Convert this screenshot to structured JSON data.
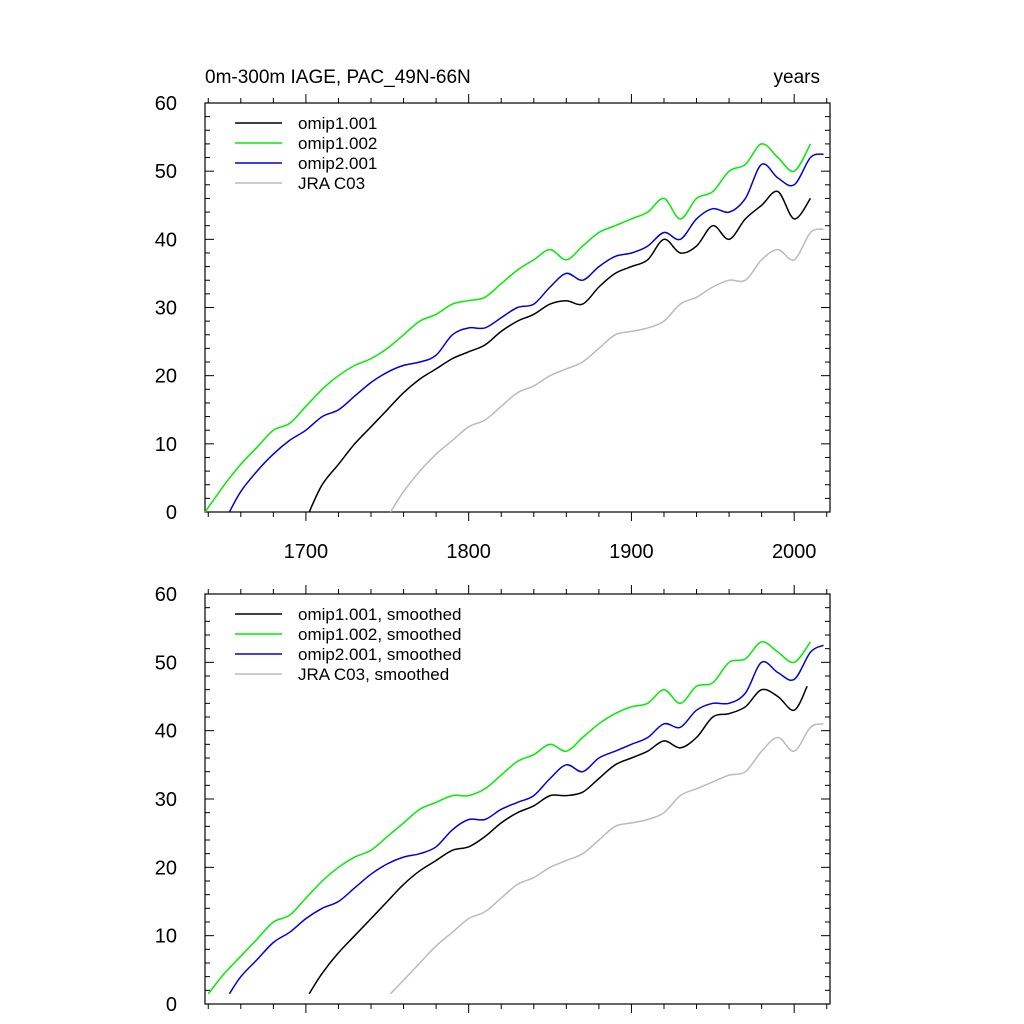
{
  "chart_data": [
    {
      "type": "line",
      "title_left": "0m-300m IAGE, PAC_49N-66N",
      "title_right": "years",
      "xlim": [
        1638,
        2022
      ],
      "ylim": [
        0,
        60
      ],
      "x_ticks": [
        1700,
        1800,
        1900,
        2000
      ],
      "x_tick_labels": [
        "1700",
        "1800",
        "1900",
        "2000"
      ],
      "y_ticks": [
        0,
        10,
        20,
        30,
        40,
        50,
        60
      ],
      "y_tick_labels": [
        "0",
        "10",
        "20",
        "30",
        "40",
        "50",
        "60"
      ],
      "legend": "top-left",
      "smoothed": false,
      "series": [
        {
          "name": "omip1.001",
          "color": "#000000",
          "x": [
            1702,
            1710,
            1720,
            1730,
            1740,
            1750,
            1760,
            1770,
            1780,
            1790,
            1800,
            1810,
            1820,
            1830,
            1840,
            1850,
            1860,
            1870,
            1880,
            1890,
            1900,
            1910,
            1920,
            1930,
            1940,
            1950,
            1960,
            1970,
            1980,
            1990,
            2000,
            2010
          ],
          "y": [
            0,
            4,
            7,
            10,
            12.5,
            15,
            17.5,
            19.5,
            21,
            22.5,
            23.5,
            24.5,
            26.5,
            28,
            29,
            30.5,
            31,
            30.5,
            33,
            35,
            36,
            37,
            40,
            38,
            39,
            42,
            40,
            43,
            45,
            47,
            43,
            46
          ]
        },
        {
          "name": "omip1.002",
          "color": "#00ee00",
          "x": [
            1638,
            1650,
            1660,
            1670,
            1680,
            1690,
            1700,
            1710,
            1720,
            1730,
            1740,
            1750,
            1760,
            1770,
            1780,
            1790,
            1800,
            1810,
            1820,
            1830,
            1840,
            1850,
            1860,
            1870,
            1880,
            1890,
            1900,
            1910,
            1920,
            1930,
            1940,
            1950,
            1960,
            1970,
            1980,
            1990,
            2000,
            2010
          ],
          "y": [
            0,
            4,
            7,
            9.5,
            12,
            13,
            15.5,
            18,
            20,
            21.5,
            22.5,
            24,
            26,
            28,
            29,
            30.5,
            31,
            31.5,
            33.5,
            35.5,
            37,
            38.5,
            37,
            39,
            41,
            42,
            43,
            44,
            46,
            43,
            46,
            47,
            50,
            51,
            54,
            52,
            50,
            54
          ]
        },
        {
          "name": "omip2.001",
          "color": "#0000dd",
          "x": [
            1653,
            1660,
            1670,
            1680,
            1690,
            1700,
            1710,
            1720,
            1730,
            1740,
            1750,
            1760,
            1770,
            1780,
            1790,
            1800,
            1810,
            1820,
            1830,
            1840,
            1850,
            1860,
            1870,
            1880,
            1890,
            1900,
            1910,
            1920,
            1930,
            1940,
            1950,
            1960,
            1970,
            1980,
            1990,
            2000,
            2010,
            2018
          ],
          "y": [
            0,
            3,
            6,
            8.5,
            10.5,
            12,
            14,
            15,
            17,
            19,
            20.5,
            21.5,
            22,
            23,
            26,
            27,
            27,
            28.5,
            30,
            30.5,
            33,
            35,
            34,
            36,
            37.5,
            38,
            39,
            41,
            40,
            43,
            44.5,
            44,
            46,
            51,
            49,
            48,
            52,
            52.5
          ]
        },
        {
          "name": "JRA C03",
          "color": "#bbbbbb",
          "x": [
            1752,
            1760,
            1770,
            1780,
            1790,
            1800,
            1810,
            1820,
            1830,
            1840,
            1850,
            1860,
            1870,
            1880,
            1890,
            1900,
            1910,
            1920,
            1930,
            1940,
            1950,
            1960,
            1970,
            1980,
            1990,
            2000,
            2010,
            2018
          ],
          "y": [
            0,
            3,
            6,
            8.5,
            10.5,
            12.5,
            13.5,
            15.5,
            17.5,
            18.5,
            20,
            21,
            22,
            24,
            26,
            26.5,
            27,
            28,
            30.5,
            31.5,
            33,
            34,
            34,
            37,
            38.5,
            37,
            41,
            41.5
          ]
        }
      ]
    },
    {
      "type": "line",
      "xlim": [
        1638,
        2022
      ],
      "ylim": [
        0,
        60
      ],
      "x_ticks": [
        1700,
        1800,
        1900,
        2000
      ],
      "y_ticks": [
        0,
        10,
        20,
        30,
        40,
        50,
        60
      ],
      "y_tick_labels": [
        "0",
        "10",
        "20",
        "30",
        "40",
        "50",
        "60"
      ],
      "legend": "top-left",
      "smoothed": true,
      "series": [
        {
          "name": "omip1.001, smoothed",
          "color": "#000000",
          "x": [
            1702,
            1710,
            1720,
            1730,
            1740,
            1750,
            1760,
            1770,
            1780,
            1790,
            1800,
            1810,
            1820,
            1830,
            1840,
            1850,
            1860,
            1870,
            1880,
            1890,
            1900,
            1910,
            1920,
            1930,
            1940,
            1950,
            1960,
            1970,
            1980,
            1990,
            2000,
            2008
          ],
          "y": [
            1.5,
            4.5,
            7.5,
            10,
            12.5,
            15,
            17.5,
            19.5,
            21,
            22.5,
            23,
            24.5,
            26.5,
            28,
            29,
            30.5,
            30.5,
            31,
            33,
            35,
            36,
            37,
            38.5,
            37.5,
            39,
            42,
            42.5,
            43.5,
            46,
            45,
            43,
            46.5
          ]
        },
        {
          "name": "omip1.002, smoothed",
          "color": "#00ee00",
          "x": [
            1640,
            1650,
            1660,
            1670,
            1680,
            1690,
            1700,
            1710,
            1720,
            1730,
            1740,
            1750,
            1760,
            1770,
            1780,
            1790,
            1800,
            1810,
            1820,
            1830,
            1840,
            1850,
            1860,
            1870,
            1880,
            1890,
            1900,
            1910,
            1920,
            1930,
            1940,
            1950,
            1960,
            1970,
            1980,
            1990,
            2000,
            2010
          ],
          "y": [
            1.5,
            4.5,
            7,
            9.5,
            12,
            13,
            15.5,
            18,
            20,
            21.5,
            22.5,
            24.5,
            26.5,
            28.5,
            29.5,
            30.5,
            30.5,
            31.5,
            33.5,
            35.5,
            36.5,
            38,
            37,
            39,
            41,
            42.5,
            43.5,
            44,
            46,
            44,
            46.5,
            47,
            50,
            50.5,
            53,
            51.5,
            50,
            53
          ]
        },
        {
          "name": "omip2.001, smoothed",
          "color": "#0000dd",
          "x": [
            1653,
            1660,
            1670,
            1680,
            1690,
            1700,
            1710,
            1720,
            1730,
            1740,
            1750,
            1760,
            1770,
            1780,
            1790,
            1800,
            1810,
            1820,
            1830,
            1840,
            1850,
            1860,
            1870,
            1880,
            1890,
            1900,
            1910,
            1920,
            1930,
            1940,
            1950,
            1960,
            1970,
            1980,
            1990,
            2000,
            2010,
            2018
          ],
          "y": [
            1.5,
            4,
            6.5,
            9,
            10.5,
            12.5,
            14,
            15,
            17,
            19,
            20.5,
            21.5,
            22,
            23,
            25.5,
            27,
            27,
            28.5,
            29.5,
            30.5,
            33,
            35,
            34,
            36,
            37,
            38,
            39,
            41,
            40.5,
            43,
            44,
            44,
            45.5,
            50,
            48.5,
            47.5,
            51.5,
            52.5
          ]
        },
        {
          "name": "JRA C03, smoothed",
          "color": "#bbbbbb",
          "x": [
            1752,
            1760,
            1770,
            1780,
            1790,
            1800,
            1810,
            1820,
            1830,
            1840,
            1850,
            1860,
            1870,
            1880,
            1890,
            1900,
            1910,
            1920,
            1930,
            1940,
            1950,
            1960,
            1970,
            1980,
            1990,
            2000,
            2010,
            2018
          ],
          "y": [
            1.5,
            3.5,
            6,
            8.5,
            10.5,
            12.5,
            13.5,
            15.5,
            17.5,
            18.5,
            20,
            21,
            22,
            24,
            26,
            26.5,
            27,
            28,
            30.5,
            31.5,
            32.5,
            33.5,
            34,
            37,
            39,
            37,
            40.5,
            41
          ]
        }
      ]
    }
  ]
}
